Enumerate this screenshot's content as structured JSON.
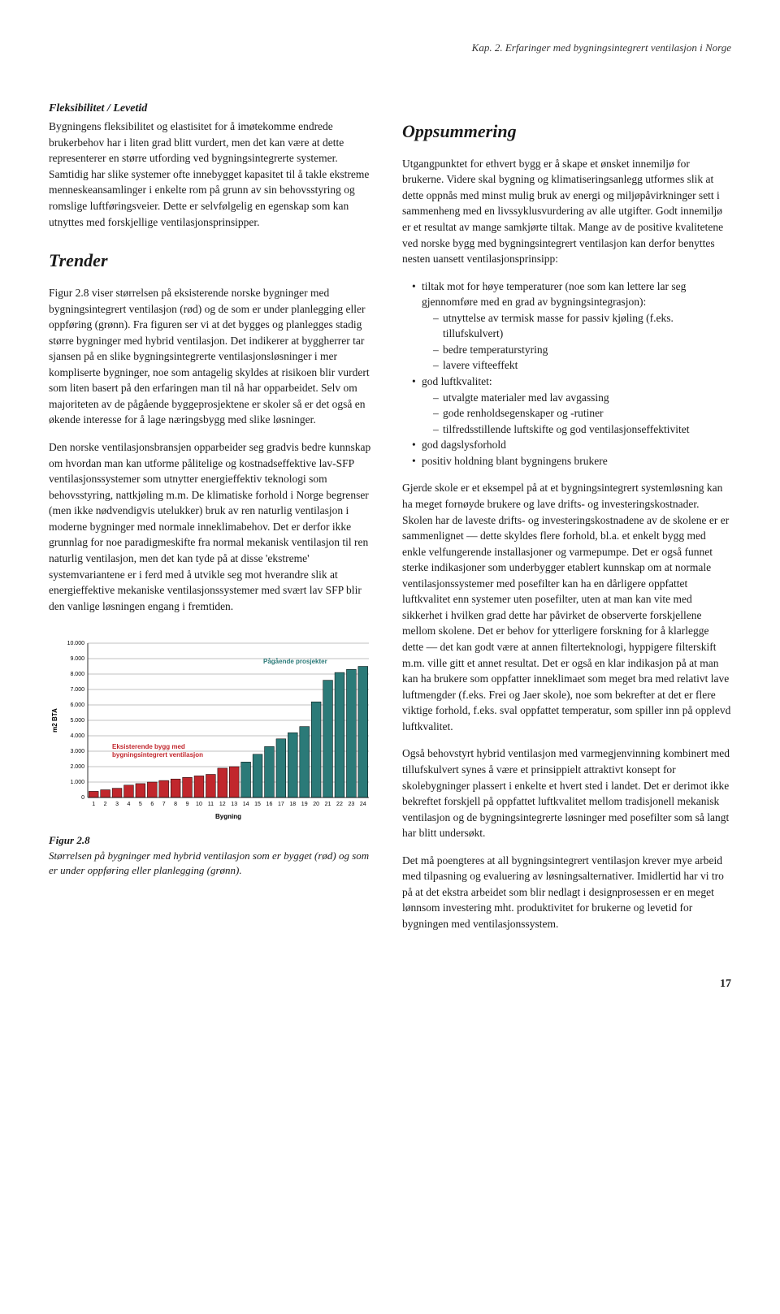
{
  "header": "Kap. 2.  Erfaringer med bygningsintegrert ventilasjon i Norge",
  "left": {
    "h3_1": "Fleksibilitet / Levetid",
    "p1": "Bygningens fleksibilitet og elastisitet for å imøtekomme endrede brukerbehov har i liten grad blitt vurdert, men det kan være at dette representerer en større utfording ved bygningsintegrerte systemer.  Samtidig har slike systemer ofte innebygget kapasitet til å takle ekstreme menneskeansamlinger i enkelte rom på grunn av sin behovsstyring og romslige luftføringsveier.  Dette er selvfølgelig en egenskap som kan utnyttes med forskjellige ventilasjonsprinsipper.",
    "h2_1": "Trender",
    "p2": "Figur 2.8 viser størrelsen på eksisterende norske bygninger med bygningsintegrert ventilasjon (rød) og de som er under planlegging eller oppføring (grønn). Fra figuren ser vi at det bygges og planlegges stadig større bygninger med hybrid ventilasjon. Det indikerer at byggherrer tar sjansen på en slike bygningsintegrerte ventilasjonsløsninger i  mer kompliserte bygninger, noe som antagelig skyldes at risikoen blir vurdert som liten basert på den erfaringen man til nå har opparbeidet. Selv om majoriteten av de pågående byggeprosjektene er skoler så er det også en økende interesse for å lage næringsbygg med slike løsninger.",
    "p3": "Den norske ventilasjonsbransjen opparbeider seg gradvis bedre kunnskap om hvordan man kan utforme pålitelige og kostnadseffektive lav-SFP ventilasjonssystemer som utnytter energieffektiv teknologi som behovsstyring, nattkjøling m.m. De klimatiske forhold i Norge begrenser (men ikke nødvendigvis utelukker) bruk av ren naturlig ventilasjon i moderne bygninger med normale inneklimabehov. Det er derfor ikke grunnlag for noe paradigmeskifte fra normal mekanisk ventilasjon til ren naturlig ventilasjon, men det kan tyde på at disse 'ekstreme' systemvariantene er i ferd med å utvikle seg mot hverandre slik at energieffektive mekaniske ventilasjonssystemer med svært lav SFP blir den vanlige løsningen engang i fremtiden.",
    "fig_num": "Figur 2.8",
    "fig_caption": "Størrelsen på bygninger med hybrid ventilasjon som er bygget (rød) og som er under oppføring eller planlegging (grønn)."
  },
  "right": {
    "h2_1": "Oppsummering",
    "p1": "Utgangpunktet for ethvert bygg er å skape et ønsket innemiljø for brukerne. Videre skal bygning og klimatiseringsanlegg utformes slik at dette oppnås med minst mulig bruk av energi og miljøpåvirkninger sett i sammenheng med en livssyklusvurdering av alle utgifter. Godt innemiljø er et resultat av mange samkjørte tiltak. Mange av de positive kvalitetene ved norske bygg med bygningsintegrert ventilasjon kan derfor benyttes nesten uansett ventilasjonsprinsipp:",
    "list": [
      {
        "t": "tiltak mot for høye temperaturer (noe som kan lettere lar seg gjennomføre med en grad av bygningsintegrasjon):",
        "sub": [
          "utnyttelse av termisk masse for passiv kjøling (f.eks. tillufskulvert)",
          "bedre temperaturstyring",
          "lavere vifteeffekt"
        ]
      },
      {
        "t": "god luftkvalitet:",
        "sub": [
          "utvalgte materialer med lav avgassing",
          "gode renholdsegenskaper og -rutiner",
          "tilfredsstillende luftskifte og god ventilasjonseffektivitet"
        ]
      },
      {
        "t": "god dagslysforhold"
      },
      {
        "t": "positiv holdning blant bygningens brukere"
      }
    ],
    "p2": "Gjerde skole er et eksempel på at et bygningsintegrert systemløsning kan ha meget fornøyde brukere og lave drifts- og investeringskostnader.  Skolen har de laveste drifts- og investeringskostnadene av de skolene er er sammenlignet — dette skyldes flere forhold, bl.a. et enkelt bygg med enkle velfungerende installasjoner og varmepumpe.  Det er også funnet sterke indikasjoner som underbygger etablert kunnskap om at normale ventilasjonssystemer med posefilter kan ha en dårligere oppfattet luftkvalitet enn systemer uten posefilter, uten at man kan vite med sikkerhet i hvilken grad dette har påvirket de observerte forskjellene mellom skolene.   Det er behov for ytterligere forskning for å klarlegge dette — det kan godt være at annen filterteknologi, hyppigere filterskift m.m. ville gitt et annet resultat. Det er også en klar indikasjon på at man kan ha brukere som oppfatter inneklimaet som meget bra med relativt lave luftmengder (f.eks. Frei og Jaer skole), noe som bekrefter at det er flere viktige forhold, f.eks. sval oppfattet temperatur, som spiller inn på opplevd luftkvalitet.",
    "p3": "Også behovstyrt hybrid ventilasjon med varmegjenvinning kombinert med tillufskulvert synes å være et prinsippielt attraktivt konsept for skolebygninger plassert i enkelte et hvert sted i landet.  Det er derimot ikke bekreftet forskjell på oppfattet luftkvalitet mellom tradisjonell mekanisk ventilasjon og de bygningsintegrerte løsninger med posefilter som så langt har blitt undersøkt.",
    "p4": "Det må poengteres at all bygningsintegrert ventilasjon krever mye arbeid med tilpasning og evaluering av løsningsalternativer.  Imidlertid har vi tro på at det ekstra arbeidet som blir nedlagt i designprosessen er en meget lønnsom investering mht. produktivitet for brukerne og levetid for bygningen med ventilasjonssystem."
  },
  "pagenum": "17",
  "chart": {
    "type": "bar",
    "ylabel": "m2 BTA",
    "xlabel": "Bygning",
    "ylim": [
      0,
      10000
    ],
    "ytick_step": 1000,
    "ytick_labels": [
      "0",
      "1.000",
      "2.000",
      "3.000",
      "4.000",
      "5.000",
      "6.000",
      "7.000",
      "8.000",
      "9.000",
      "10.000"
    ],
    "categories": [
      "1",
      "2",
      "3",
      "4",
      "5",
      "6",
      "7",
      "8",
      "9",
      "10",
      "11",
      "12",
      "13",
      "14",
      "15",
      "16",
      "17",
      "18",
      "19",
      "20",
      "21",
      "22",
      "23",
      "24"
    ],
    "values": [
      400,
      500,
      600,
      800,
      900,
      1000,
      1100,
      1200,
      1300,
      1400,
      1500,
      1900,
      2000,
      2300,
      2800,
      3300,
      3800,
      4200,
      4600,
      6200,
      7600,
      8100,
      8300,
      8500
    ],
    "split_index": 13,
    "color_existing": "#c1272d",
    "color_ongoing": "#2b7a78",
    "border_color": "#000000",
    "grid_color": "#666666",
    "background_color": "#ffffff",
    "label_existing": "Eksisterende bygg med bygningsintegrert ventilasjon",
    "label_ongoing": "Pågående prosjekter",
    "label_fontsize": 8,
    "tick_fontsize": 7,
    "axis_fontsize": 8,
    "bar_width": 0.82
  }
}
